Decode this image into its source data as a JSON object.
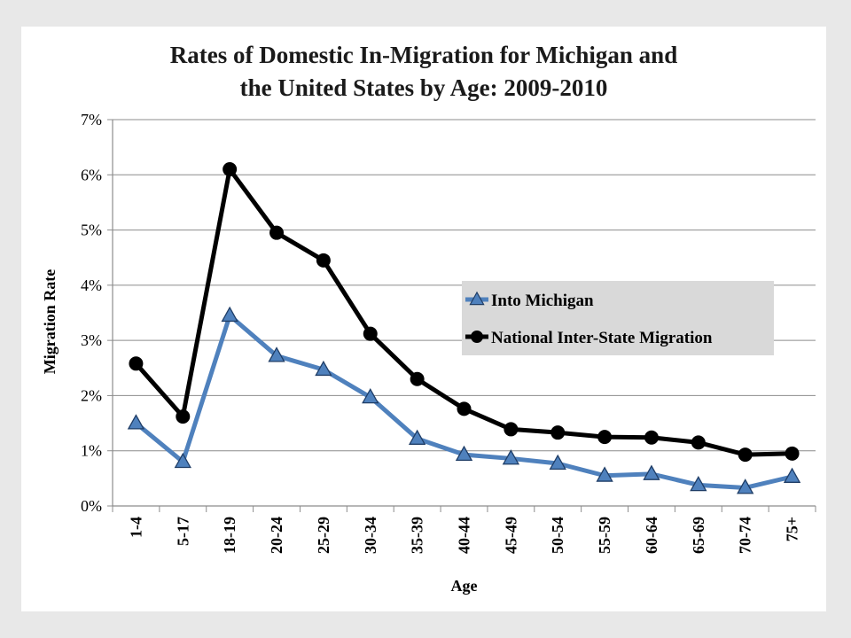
{
  "chart_data": {
    "type": "line",
    "title_line1": "Rates of Domestic In-Migration for Michigan and",
    "title_line2": "the United States by Age: 2009-2010",
    "xlabel": "Age",
    "ylabel": "Migration Rate",
    "categories": [
      "1-4",
      "5-17",
      "18-19",
      "20-24",
      "25-29",
      "30-34",
      "35-39",
      "40-44",
      "45-49",
      "50-54",
      "55-59",
      "60-64",
      "65-69",
      "70-74",
      "75+"
    ],
    "ylim": [
      0,
      7
    ],
    "yticks": [
      "0%",
      "1%",
      "2%",
      "3%",
      "4%",
      "5%",
      "6%",
      "7%"
    ],
    "grid": true,
    "legend_position": "center-right",
    "series": [
      {
        "name": "Into Michigan",
        "color": "#4f81bd",
        "marker": "triangle",
        "values": [
          1.5,
          0.8,
          3.45,
          2.72,
          2.47,
          1.97,
          1.22,
          0.93,
          0.86,
          0.77,
          0.55,
          0.58,
          0.38,
          0.33,
          0.53
        ]
      },
      {
        "name": "National Inter-State Migration",
        "color": "#000000",
        "marker": "circle",
        "values": [
          2.58,
          1.62,
          6.1,
          4.95,
          4.45,
          3.12,
          2.3,
          1.76,
          1.39,
          1.33,
          1.25,
          1.24,
          1.15,
          0.93,
          0.95
        ]
      }
    ]
  }
}
